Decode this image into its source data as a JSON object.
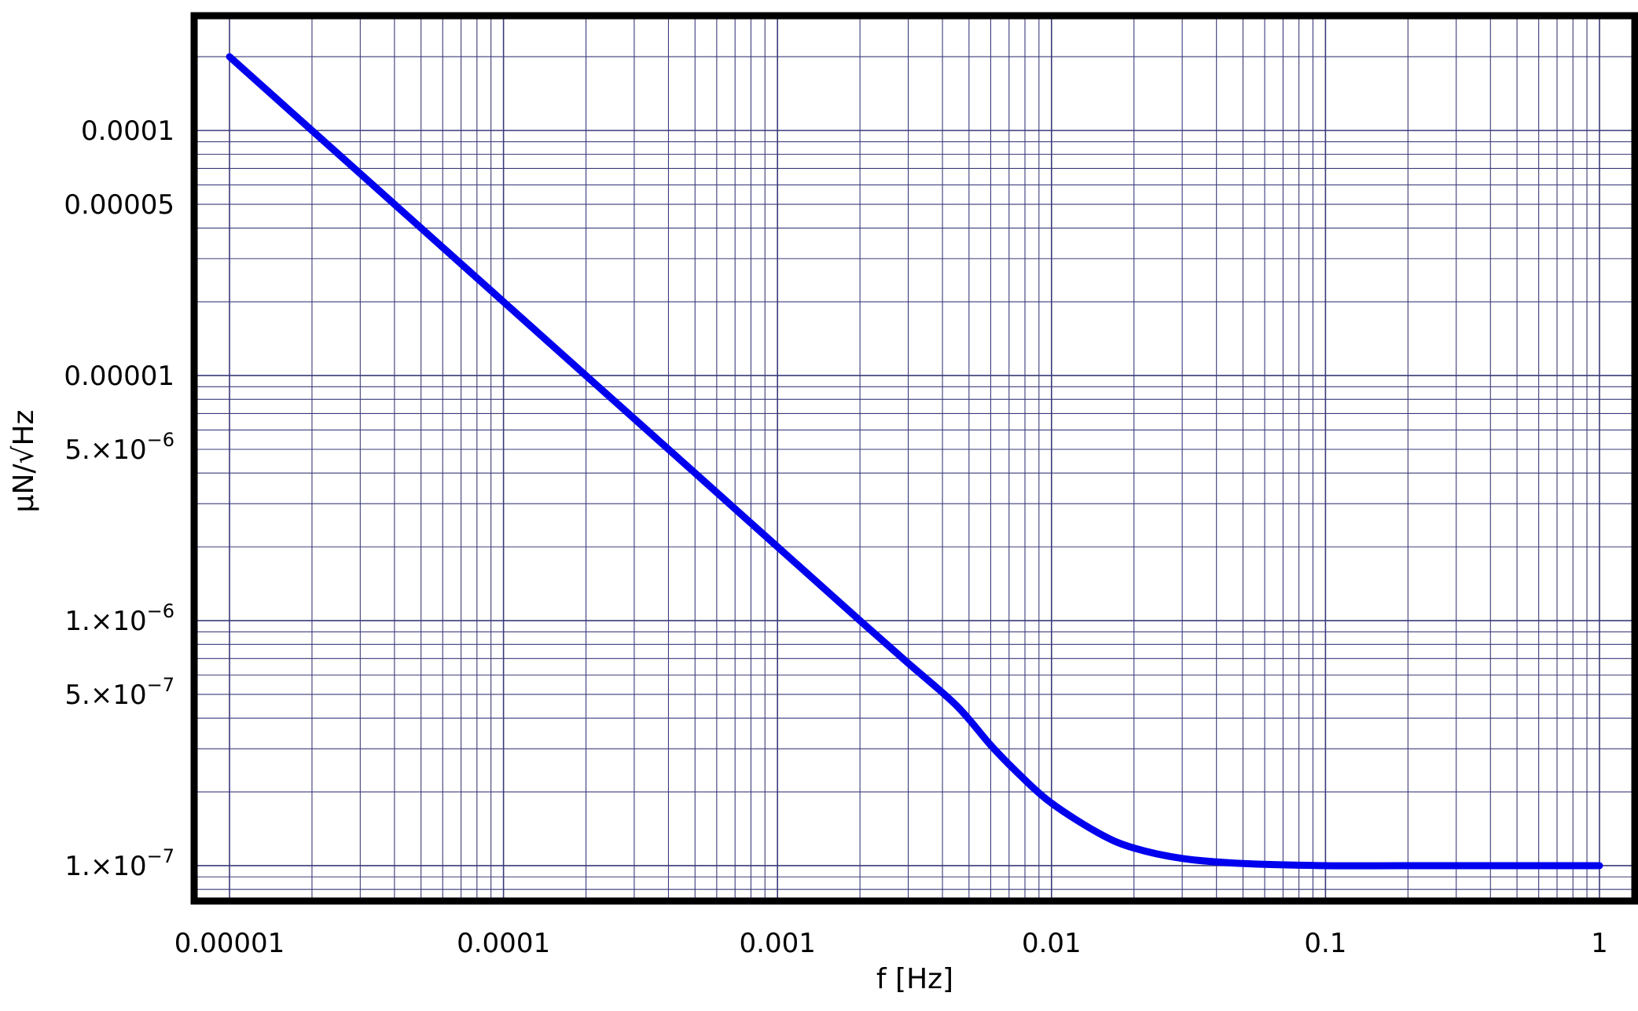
{
  "chart_data": {
    "type": "line",
    "title": "",
    "xlabel": "f [Hz]",
    "ylabel": "μN/√Hz",
    "xscale": "log",
    "yscale": "log",
    "xlim": [
      1e-05,
      1
    ],
    "ylim": [
      8.5e-08,
      0.00025
    ],
    "grid": true,
    "legend": "none",
    "colors": {
      "line": "#0000ee",
      "grid": "#3a3a7a",
      "frame": "#000000"
    },
    "x_ticks": [
      {
        "value": 1e-05,
        "label": "0.00001"
      },
      {
        "value": 0.0001,
        "label": "0.0001"
      },
      {
        "value": 0.001,
        "label": "0.001"
      },
      {
        "value": 0.01,
        "label": "0.01"
      },
      {
        "value": 0.1,
        "label": "0.1"
      },
      {
        "value": 1,
        "label": "1"
      }
    ],
    "y_ticks": [
      {
        "value": 0.0001,
        "label": "0.0001"
      },
      {
        "value": 5e-05,
        "label": "0.00005"
      },
      {
        "value": 1e-05,
        "label": "0.00001"
      },
      {
        "value": 5e-06,
        "mant": "5.",
        "exp": "−6"
      },
      {
        "value": 1e-06,
        "mant": "1.",
        "exp": "−6"
      },
      {
        "value": 5e-07,
        "mant": "5.",
        "exp": "−7"
      },
      {
        "value": 1e-07,
        "mant": "1.",
        "exp": "−7"
      }
    ],
    "series": [
      {
        "x": [
          1e-05,
          2e-05,
          5e-05,
          0.0001,
          0.0002,
          0.0005,
          0.001,
          0.002,
          0.003,
          0.0045,
          0.006,
          0.0075,
          0.01,
          0.015,
          0.02,
          0.03,
          0.05,
          0.1,
          0.2,
          0.5,
          1
        ],
        "y": [
          0.0002,
          0.0001,
          4e-05,
          2e-05,
          1e-05,
          4e-06,
          2e-06,
          1e-06,
          6.7e-07,
          4.5e-07,
          3.1e-07,
          2.4e-07,
          1.8e-07,
          1.35e-07,
          1.18e-07,
          1.07e-07,
          1.02e-07,
          1e-07,
          1e-07,
          1e-07,
          1e-07
        ]
      }
    ]
  }
}
